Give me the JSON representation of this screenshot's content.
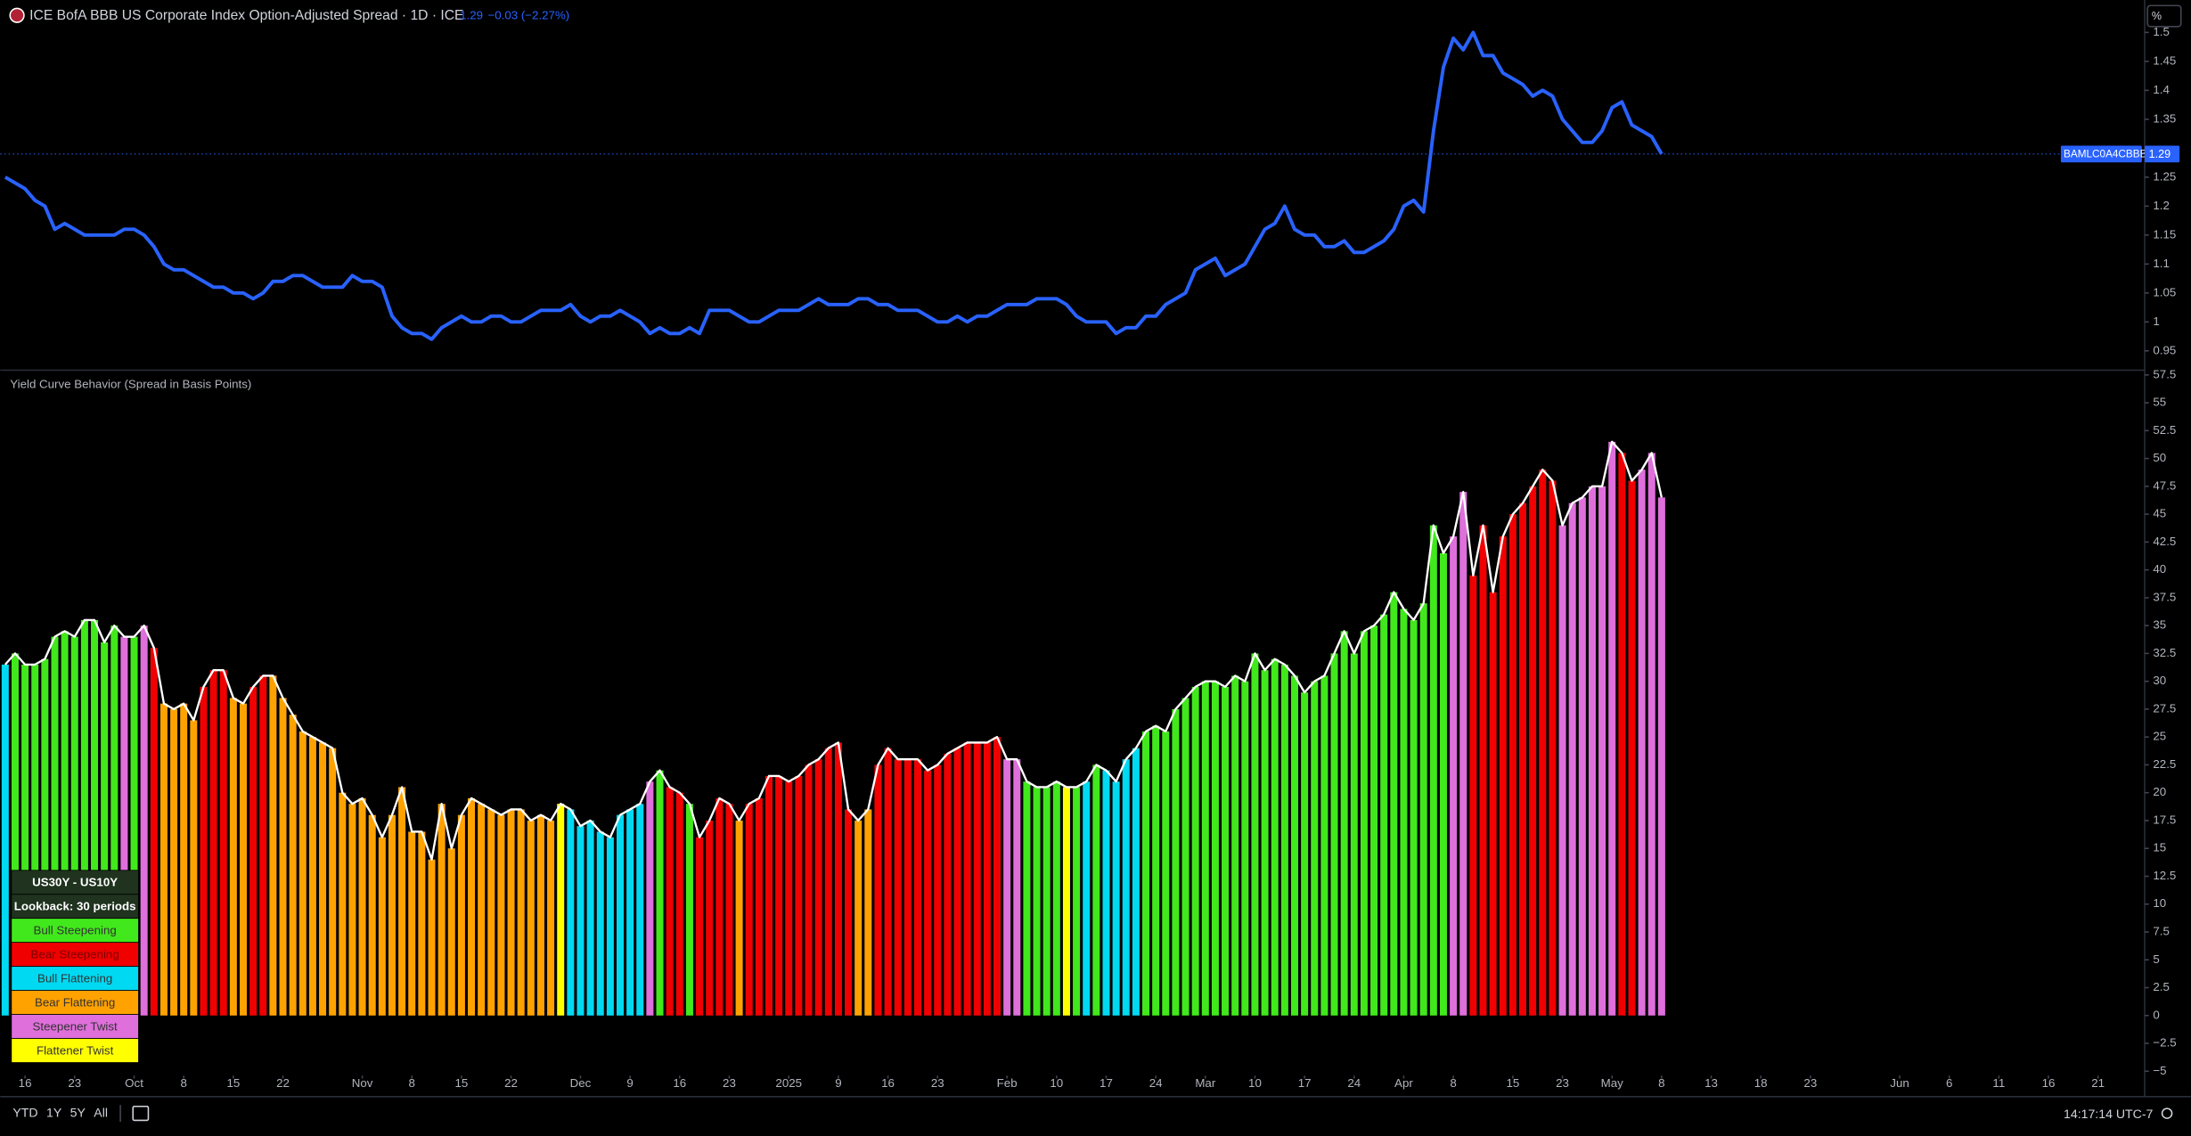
{
  "chart_data": [
    {
      "type": "line",
      "title": "ICE BofA BBB US Corporate Index Option-Adjusted Spread · 1D · ICE",
      "change_label": "−0.03 (−2.27%)",
      "unit_button": "%",
      "series": [
        {
          "name": "BAMLC0A4CBBB",
          "color": "#2962ff",
          "values": [
            1.25,
            1.24,
            1.23,
            1.21,
            1.2,
            1.16,
            1.17,
            1.16,
            1.15,
            1.15,
            1.15,
            1.15,
            1.16,
            1.16,
            1.15,
            1.13,
            1.1,
            1.09,
            1.09,
            1.08,
            1.07,
            1.06,
            1.06,
            1.05,
            1.05,
            1.04,
            1.05,
            1.07,
            1.07,
            1.08,
            1.08,
            1.07,
            1.06,
            1.06,
            1.06,
            1.08,
            1.07,
            1.07,
            1.06,
            1.01,
            0.99,
            0.98,
            0.98,
            0.97,
            0.99,
            1.0,
            1.01,
            1.0,
            1.0,
            1.01,
            1.01,
            1.0,
            1.0,
            1.01,
            1.02,
            1.02,
            1.02,
            1.03,
            1.01,
            1.0,
            1.01,
            1.01,
            1.02,
            1.01,
            1.0,
            0.98,
            0.99,
            0.98,
            0.98,
            0.99,
            0.98,
            1.02,
            1.02,
            1.02,
            1.01,
            1.0,
            1.0,
            1.01,
            1.02,
            1.02,
            1.02,
            1.03,
            1.04,
            1.03,
            1.03,
            1.03,
            1.04,
            1.04,
            1.03,
            1.03,
            1.02,
            1.02,
            1.02,
            1.01,
            1.0,
            1.0,
            1.01,
            1.0,
            1.01,
            1.01,
            1.02,
            1.03,
            1.03,
            1.03,
            1.04,
            1.04,
            1.04,
            1.03,
            1.01,
            1.0,
            1.0,
            1.0,
            0.98,
            0.99,
            0.99,
            1.01,
            1.01,
            1.03,
            1.04,
            1.05,
            1.09,
            1.1,
            1.11,
            1.08,
            1.09,
            1.1,
            1.13,
            1.16,
            1.17,
            1.2,
            1.16,
            1.15,
            1.15,
            1.13,
            1.13,
            1.14,
            1.12,
            1.12,
            1.13,
            1.14,
            1.16,
            1.2,
            1.21,
            1.19,
            1.33,
            1.44,
            1.49,
            1.47,
            1.5,
            1.46,
            1.46,
            1.43,
            1.42,
            1.41,
            1.39,
            1.4,
            1.39,
            1.35,
            1.33,
            1.31,
            1.31,
            1.33,
            1.37,
            1.38,
            1.34,
            1.33,
            1.32,
            1.29
          ]
        }
      ],
      "xlim": [
        -0.5,
        215.7
      ],
      "ylim": [
        0.919,
        1.556
      ],
      "yticks": [
        0.95,
        1,
        1.05,
        1.1,
        1.15,
        1.2,
        1.25,
        1.35,
        1.4,
        1.45,
        1.5
      ]
    },
    {
      "type": "bar",
      "title": "Yield Curve Behavior (Spread in Basis Points)",
      "line_color": "#ffffff",
      "values": [
        31.5,
        32.5,
        31.5,
        31.5,
        32,
        34,
        34.5,
        34,
        35.5,
        35.5,
        33.5,
        35,
        34,
        34,
        35,
        33,
        28,
        27.5,
        28,
        26.5,
        29.5,
        31,
        31,
        28.5,
        28,
        29.5,
        30.5,
        30.5,
        28.5,
        27,
        25.5,
        25,
        24.5,
        24,
        20,
        19,
        19.5,
        18,
        16,
        18,
        20.5,
        16.5,
        16.5,
        14,
        19,
        15,
        18,
        19.5,
        19,
        18.5,
        18,
        18.5,
        18.5,
        17.5,
        18,
        17.5,
        19,
        18.5,
        17,
        17.5,
        16.5,
        16,
        18,
        18.5,
        19,
        21,
        22,
        20.5,
        20,
        19,
        16,
        17.5,
        19.5,
        19,
        17.5,
        19,
        19.5,
        21.5,
        21.5,
        21,
        21.5,
        22.5,
        23,
        24,
        24.5,
        18.5,
        17.5,
        18.5,
        22.5,
        24,
        23,
        23,
        23,
        22,
        22.5,
        23.5,
        24,
        24.5,
        24.5,
        24.5,
        25,
        23,
        23,
        21,
        20.5,
        20.5,
        21,
        20.5,
        20.5,
        21,
        22.5,
        22,
        21,
        23,
        24,
        25.5,
        26,
        25.5,
        27.5,
        28.5,
        29.5,
        30,
        30,
        29.5,
        30.5,
        30,
        32.5,
        31,
        32,
        31.5,
        30.5,
        29,
        30,
        30.5,
        32.5,
        34.5,
        32.5,
        34.5,
        35,
        36,
        38,
        36.5,
        35.5,
        37,
        44,
        41.5,
        43,
        47,
        39.5,
        44,
        38,
        43,
        45,
        46,
        47.5,
        49,
        48,
        44,
        46,
        46.5,
        47.5,
        47.5,
        51.5,
        50.5,
        48,
        49,
        50.5,
        46.5
      ],
      "colors": [
        "#00d9f2",
        "#41e81b",
        "#41e81b",
        "#41e81b",
        "#41e81b",
        "#41e81b",
        "#41e81b",
        "#41e81b",
        "#41e81b",
        "#41e81b",
        "#41e81b",
        "#41e81b",
        "#df6fdb",
        "#41e81b",
        "#df6fdb",
        "#f00000",
        "#ffa200",
        "#ffa200",
        "#ffa200",
        "#ffa200",
        "#f00000",
        "#f00000",
        "#f00000",
        "#ffa200",
        "#ffa200",
        "#f00000",
        "#f00000",
        "#ffa200",
        "#ffa200",
        "#ffa200",
        "#ffa200",
        "#ffa200",
        "#ffa200",
        "#ffa200",
        "#ffa200",
        "#ffa200",
        "#ffa200",
        "#ffa200",
        "#ffa200",
        "#ffa200",
        "#ffa200",
        "#ffa200",
        "#ffa200",
        "#ffa200",
        "#ffa200",
        "#ffa200",
        "#ffa200",
        "#ffa200",
        "#ffa200",
        "#ffa200",
        "#ffa200",
        "#ffa200",
        "#ffa200",
        "#ffa200",
        "#ffa200",
        "#ffa200",
        "#ffff00",
        "#00d9f2",
        "#00d9f2",
        "#00d9f2",
        "#00d9f2",
        "#00d9f2",
        "#00d9f2",
        "#00d9f2",
        "#00d9f2",
        "#df6fdb",
        "#41e81b",
        "#f00000",
        "#f00000",
        "#41e81b",
        "#f00000",
        "#f00000",
        "#f00000",
        "#f00000",
        "#ffa200",
        "#f00000",
        "#f00000",
        "#f00000",
        "#f00000",
        "#f00000",
        "#f00000",
        "#f00000",
        "#f00000",
        "#f00000",
        "#f00000",
        "#f00000",
        "#ffa200",
        "#ffa200",
        "#f00000",
        "#f00000",
        "#f00000",
        "#f00000",
        "#f00000",
        "#f00000",
        "#f00000",
        "#f00000",
        "#f00000",
        "#f00000",
        "#f00000",
        "#f00000",
        "#f00000",
        "#df6fdb",
        "#df6fdb",
        "#41e81b",
        "#41e81b",
        "#41e81b",
        "#41e81b",
        "#ffff00",
        "#41e81b",
        "#00d9f2",
        "#41e81b",
        "#00d9f2",
        "#00d9f2",
        "#00d9f2",
        "#00d9f2",
        "#41e81b",
        "#41e81b",
        "#41e81b",
        "#41e81b",
        "#41e81b",
        "#41e81b",
        "#41e81b",
        "#41e81b",
        "#41e81b",
        "#41e81b",
        "#41e81b",
        "#41e81b",
        "#41e81b",
        "#41e81b",
        "#41e81b",
        "#41e81b",
        "#41e81b",
        "#41e81b",
        "#41e81b",
        "#41e81b",
        "#41e81b",
        "#41e81b",
        "#41e81b",
        "#41e81b",
        "#41e81b",
        "#41e81b",
        "#41e81b",
        "#41e81b",
        "#41e81b",
        "#41e81b",
        "#41e81b",
        "#df6fdb",
        "#df6fdb",
        "#f00000",
        "#f00000",
        "#f00000",
        "#f00000",
        "#f00000",
        "#f00000",
        "#f00000",
        "#f00000",
        "#f00000",
        "#df6fdb",
        "#df6fdb",
        "#df6fdb",
        "#df6fdb",
        "#df6fdb",
        "#df6fdb",
        "#f00000",
        "#f00000",
        "#df6fdb",
        "#df6fdb",
        "#df6fdb"
      ],
      "legend": {
        "title": "US30Y - US10Y",
        "subtitle": "Lookback: 30 periods",
        "items": [
          {
            "name": "Bull Steepening",
            "color": "#41e81b"
          },
          {
            "name": "Bear Steepening",
            "color": "#f00000"
          },
          {
            "name": "Bull Flattening",
            "color": "#00d9f2"
          },
          {
            "name": "Bear Flattening",
            "color": "#ffa200"
          },
          {
            "name": "Steepener Twist",
            "color": "#df6fdb"
          },
          {
            "name": "Flattener Twist",
            "color": "#ffff00"
          }
        ]
      },
      "xlim": [
        -0.5,
        215.7
      ],
      "ylim": [
        -5.4,
        57.8
      ],
      "yticks": [
        {
          "value": -5,
          "label": "−5"
        },
        {
          "value": -2.5,
          "label": "−2.5"
        },
        0,
        2.5,
        5,
        7.5,
        10,
        12.5,
        15,
        17.5,
        20,
        22.5,
        25,
        27.5,
        30,
        32.5,
        35,
        37.5,
        40,
        42.5,
        45,
        47.5,
        50,
        52.5,
        55,
        57.5
      ],
      "xticks": [
        {
          "value": 2,
          "label": "16"
        },
        {
          "value": 7,
          "label": "23"
        },
        {
          "value": 13,
          "label": "Oct"
        },
        {
          "value": 18,
          "label": "8"
        },
        {
          "value": 23,
          "label": "15"
        },
        {
          "value": 28,
          "label": "22"
        },
        {
          "value": 36,
          "label": "Nov"
        },
        {
          "value": 41,
          "label": "8"
        },
        {
          "value": 46,
          "label": "15"
        },
        {
          "value": 51,
          "label": "22"
        },
        {
          "value": 58,
          "label": "Dec"
        },
        {
          "value": 63,
          "label": "9"
        },
        {
          "value": 68,
          "label": "16"
        },
        {
          "value": 73,
          "label": "23"
        },
        {
          "value": 79,
          "label": "2025"
        },
        {
          "value": 84,
          "label": "9"
        },
        {
          "value": 89,
          "label": "16"
        },
        {
          "value": 94,
          "label": "23"
        },
        {
          "value": 101,
          "label": "Feb"
        },
        {
          "value": 106,
          "label": "10"
        },
        {
          "value": 111,
          "label": "17"
        },
        {
          "value": 116,
          "label": "24"
        },
        {
          "value": 121,
          "label": "Mar"
        },
        {
          "value": 126,
          "label": "10"
        },
        {
          "value": 131,
          "label": "17"
        },
        {
          "value": 136,
          "label": "24"
        },
        {
          "value": 141,
          "label": "Apr"
        },
        {
          "value": 146,
          "label": "8"
        },
        {
          "value": 152,
          "label": "15"
        },
        {
          "value": 157,
          "label": "23"
        },
        {
          "value": 162,
          "label": "May"
        },
        {
          "value": 167,
          "label": "8"
        },
        {
          "value": 172,
          "label": "13"
        },
        {
          "value": 177,
          "label": "18"
        },
        {
          "value": 182,
          "label": "23"
        },
        {
          "value": 191,
          "label": "Jun"
        },
        {
          "value": 196,
          "label": "6"
        },
        {
          "value": 201,
          "label": "11"
        },
        {
          "value": 206,
          "label": "16"
        },
        {
          "value": 211,
          "label": "21"
        }
      ]
    }
  ],
  "toolbar": {
    "ranges": [
      "YTD",
      "1Y",
      "5Y",
      "All"
    ],
    "clock": "14:17:14 UTC-7"
  }
}
